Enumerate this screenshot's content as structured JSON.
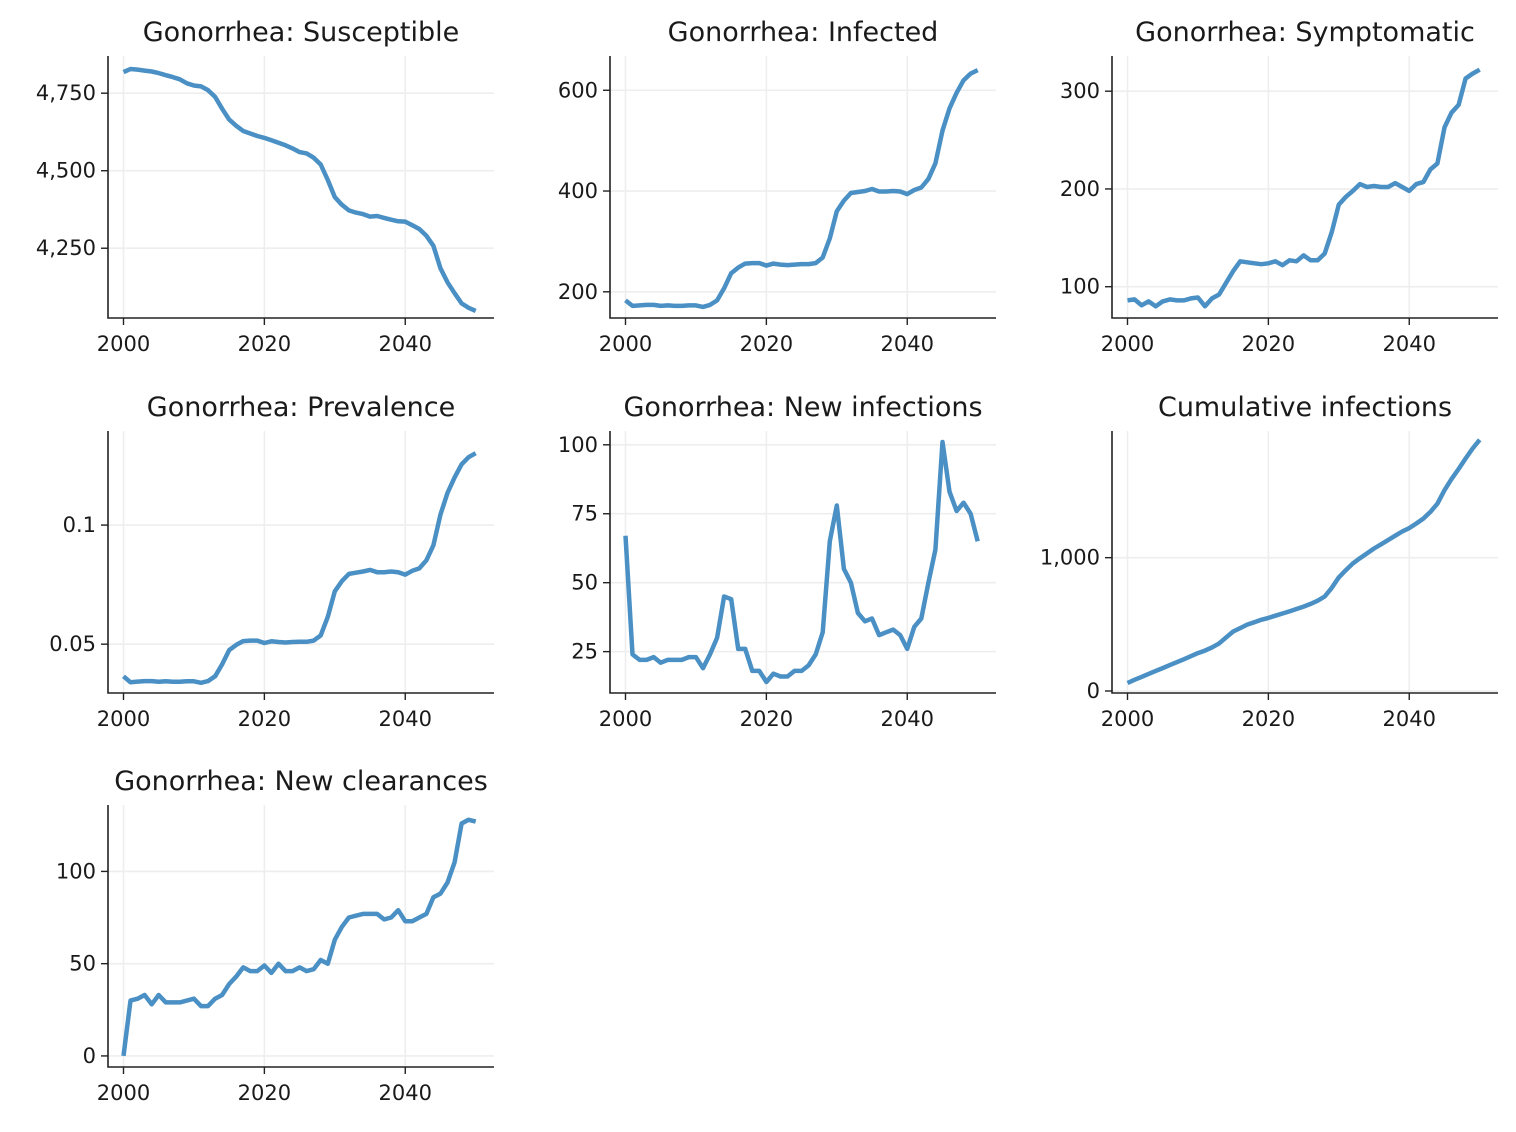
{
  "style": {
    "line_color": "#4a90c4"
  },
  "chart_data": [
    {
      "type": "line",
      "title": "Gonorrhea: Susceptible",
      "xlim": [
        1997.8,
        2052.6
      ],
      "ylim": [
        4025,
        4870
      ],
      "xticks": [
        2000,
        2020,
        2040
      ],
      "xtick_labels": [
        "2000",
        "2020",
        "2040"
      ],
      "yticks": [
        4250,
        4500,
        4750
      ],
      "ytick_labels": [
        "4,250",
        "4,500",
        "4,750"
      ],
      "grid": true,
      "x": [
        2000,
        2001,
        2002,
        2003,
        2004,
        2005,
        2006,
        2007,
        2008,
        2009,
        2010,
        2011,
        2012,
        2013,
        2014,
        2015,
        2016,
        2017,
        2018,
        2019,
        2020,
        2021,
        2022,
        2023,
        2024,
        2025,
        2026,
        2027,
        2028,
        2029,
        2030,
        2031,
        2032,
        2033,
        2034,
        2035,
        2036,
        2037,
        2038,
        2039,
        2040,
        2041,
        2042,
        2043,
        2044,
        2045,
        2046,
        2047,
        2048,
        2049,
        2050
      ],
      "y": [
        4818,
        4828,
        4826,
        4823,
        4820,
        4815,
        4808,
        4802,
        4795,
        4782,
        4775,
        4772,
        4760,
        4738,
        4700,
        4665,
        4645,
        4628,
        4620,
        4612,
        4606,
        4598,
        4590,
        4582,
        4572,
        4560,
        4556,
        4542,
        4520,
        4470,
        4415,
        4390,
        4372,
        4365,
        4360,
        4352,
        4354,
        4348,
        4342,
        4337,
        4336,
        4324,
        4312,
        4290,
        4258,
        4185,
        4140,
        4105,
        4072,
        4058,
        4048
      ]
    },
    {
      "type": "line",
      "title": "Gonorrhea: Infected",
      "xlim": [
        1997.8,
        2052.6
      ],
      "ylim": [
        148,
        668
      ],
      "xticks": [
        2000,
        2020,
        2040
      ],
      "xtick_labels": [
        "2000",
        "2020",
        "2040"
      ],
      "yticks": [
        200,
        400,
        600
      ],
      "ytick_labels": [
        "200",
        "400",
        "600"
      ],
      "grid": true,
      "x": [
        2000,
        2001,
        2002,
        2003,
        2004,
        2005,
        2006,
        2007,
        2008,
        2009,
        2010,
        2011,
        2012,
        2013,
        2014,
        2015,
        2016,
        2017,
        2018,
        2019,
        2020,
        2021,
        2022,
        2023,
        2024,
        2025,
        2026,
        2027,
        2028,
        2029,
        2030,
        2031,
        2032,
        2033,
        2034,
        2035,
        2036,
        2037,
        2038,
        2039,
        2040,
        2041,
        2042,
        2043,
        2044,
        2045,
        2046,
        2047,
        2048,
        2049,
        2050
      ],
      "y": [
        183,
        172,
        173,
        174,
        174,
        172,
        173,
        172,
        172,
        173,
        173,
        170,
        174,
        183,
        207,
        237,
        248,
        256,
        257,
        257,
        252,
        256,
        254,
        253,
        254,
        255,
        255,
        257,
        268,
        306,
        360,
        381,
        396,
        398,
        400,
        404,
        399,
        399,
        400,
        399,
        394,
        402,
        407,
        424,
        455,
        520,
        564,
        595,
        620,
        633,
        640
      ]
    },
    {
      "type": "line",
      "title": "Gonorrhea: Symptomatic",
      "xlim": [
        1997.8,
        2052.6
      ],
      "ylim": [
        68,
        336
      ],
      "xticks": [
        2000,
        2020,
        2040
      ],
      "xtick_labels": [
        "2000",
        "2020",
        "2040"
      ],
      "yticks": [
        100,
        200,
        300
      ],
      "ytick_labels": [
        "100",
        "200",
        "300"
      ],
      "grid": true,
      "x": [
        2000,
        2001,
        2002,
        2003,
        2004,
        2005,
        2006,
        2007,
        2008,
        2009,
        2010,
        2011,
        2012,
        2013,
        2014,
        2015,
        2016,
        2017,
        2018,
        2019,
        2020,
        2021,
        2022,
        2023,
        2024,
        2025,
        2026,
        2027,
        2028,
        2029,
        2030,
        2031,
        2032,
        2033,
        2034,
        2035,
        2036,
        2037,
        2038,
        2039,
        2040,
        2041,
        2042,
        2043,
        2044,
        2045,
        2046,
        2047,
        2048,
        2049,
        2050
      ],
      "y": [
        86,
        87,
        81,
        85,
        80,
        85,
        87,
        86,
        86,
        88,
        89,
        80,
        88,
        92,
        104,
        116,
        126,
        125,
        124,
        123,
        124,
        126,
        122,
        127,
        126,
        132,
        127,
        127,
        134,
        156,
        184,
        192,
        198,
        205,
        202,
        203,
        202,
        202,
        206,
        202,
        198,
        205,
        207,
        220,
        226,
        263,
        278,
        286,
        313,
        318,
        322
      ]
    },
    {
      "type": "line",
      "title": "Gonorrhea: Prevalence",
      "xlim": [
        1997.8,
        2052.6
      ],
      "ylim": [
        0.0295,
        0.1395
      ],
      "xticks": [
        2000,
        2020,
        2040
      ],
      "xtick_labels": [
        "2000",
        "2020",
        "2040"
      ],
      "yticks": [
        0.05,
        0.1
      ],
      "ytick_labels": [
        "0.05",
        "0.1"
      ],
      "grid": true,
      "x": [
        2000,
        2001,
        2002,
        2003,
        2004,
        2005,
        2006,
        2007,
        2008,
        2009,
        2010,
        2011,
        2012,
        2013,
        2014,
        2015,
        2016,
        2017,
        2018,
        2019,
        2020,
        2021,
        2022,
        2023,
        2024,
        2025,
        2026,
        2027,
        2028,
        2029,
        2030,
        2031,
        2032,
        2033,
        2034,
        2035,
        2036,
        2037,
        2038,
        2039,
        2040,
        2041,
        2042,
        2043,
        2044,
        2045,
        2046,
        2047,
        2048,
        2049,
        2050
      ],
      "y": [
        0.0365,
        0.034,
        0.0343,
        0.0345,
        0.0345,
        0.0342,
        0.0344,
        0.0342,
        0.0342,
        0.0344,
        0.0344,
        0.0338,
        0.0345,
        0.0365,
        0.0415,
        0.0475,
        0.0497,
        0.0513,
        0.0515,
        0.0515,
        0.0505,
        0.0512,
        0.0509,
        0.0507,
        0.0509,
        0.051,
        0.051,
        0.0515,
        0.0537,
        0.0615,
        0.0722,
        0.0765,
        0.0795,
        0.08,
        0.0805,
        0.0812,
        0.0802,
        0.0802,
        0.0805,
        0.0802,
        0.0792,
        0.0808,
        0.0818,
        0.0852,
        0.0915,
        0.1045,
        0.1135,
        0.12,
        0.1255,
        0.1285,
        0.1302
      ]
    },
    {
      "type": "line",
      "title": "Gonorrhea: New infections",
      "xlim": [
        1997.8,
        2052.6
      ],
      "ylim": [
        10,
        105
      ],
      "xticks": [
        2000,
        2020,
        2040
      ],
      "xtick_labels": [
        "2000",
        "2020",
        "2040"
      ],
      "yticks": [
        25,
        50,
        75,
        100
      ],
      "ytick_labels": [
        "25",
        "50",
        "75",
        "100"
      ],
      "grid": true,
      "x": [
        2000,
        2001,
        2002,
        2003,
        2004,
        2005,
        2006,
        2007,
        2008,
        2009,
        2010,
        2011,
        2012,
        2013,
        2014,
        2015,
        2016,
        2017,
        2018,
        2019,
        2020,
        2021,
        2022,
        2023,
        2024,
        2025,
        2026,
        2027,
        2028,
        2029,
        2030,
        2031,
        2032,
        2033,
        2034,
        2035,
        2036,
        2037,
        2038,
        2039,
        2040,
        2041,
        2042,
        2043,
        2044,
        2045,
        2046,
        2047,
        2048,
        2049,
        2050
      ],
      "y": [
        67,
        24,
        22,
        22,
        23,
        21,
        22,
        22,
        22,
        23,
        23,
        19,
        24,
        30,
        45,
        44,
        26,
        26,
        18,
        18,
        14,
        17,
        16,
        16,
        18,
        18,
        20,
        24,
        32,
        65,
        78,
        55,
        50,
        39,
        36,
        37,
        31,
        32,
        33,
        31,
        26,
        34,
        37,
        50,
        62,
        101,
        83,
        76,
        79,
        75,
        65
      ]
    },
    {
      "type": "line",
      "title": "Cumulative infections",
      "xlim": [
        1997.8,
        2052.6
      ],
      "ylim": [
        -15,
        1950
      ],
      "xticks": [
        2000,
        2020,
        2040
      ],
      "xtick_labels": [
        "2000",
        "2020",
        "2040"
      ],
      "yticks": [
        0,
        1000
      ],
      "ytick_labels": [
        "0",
        "1,000"
      ],
      "grid": true,
      "x": [
        2000,
        2001,
        2002,
        2003,
        2004,
        2005,
        2006,
        2007,
        2008,
        2009,
        2010,
        2011,
        2012,
        2013,
        2014,
        2015,
        2016,
        2017,
        2018,
        2019,
        2020,
        2021,
        2022,
        2023,
        2024,
        2025,
        2026,
        2027,
        2028,
        2029,
        2030,
        2031,
        2032,
        2033,
        2034,
        2035,
        2036,
        2037,
        2038,
        2039,
        2040,
        2041,
        2042,
        2043,
        2044,
        2045,
        2046,
        2047,
        2048,
        2049,
        2050
      ],
      "y": [
        60,
        84,
        106,
        128,
        151,
        172,
        194,
        216,
        238,
        261,
        284,
        303,
        327,
        357,
        402,
        446,
        472,
        498,
        516,
        534,
        548,
        565,
        581,
        597,
        615,
        633,
        653,
        677,
        709,
        774,
        852,
        907,
        957,
        996,
        1032,
        1069,
        1100,
        1132,
        1165,
        1196,
        1222,
        1256,
        1293,
        1343,
        1405,
        1506,
        1589,
        1665,
        1744,
        1819,
        1884
      ]
    },
    {
      "type": "line",
      "title": "Gonorrhea: New clearances",
      "xlim": [
        1997.8,
        2052.6
      ],
      "ylim": [
        -6,
        136
      ],
      "xticks": [
        2000,
        2020,
        2040
      ],
      "xtick_labels": [
        "2000",
        "2020",
        "2040"
      ],
      "yticks": [
        0,
        50,
        100
      ],
      "ytick_labels": [
        "0",
        "50",
        "100"
      ],
      "grid": true,
      "x": [
        2000,
        2001,
        2002,
        2003,
        2004,
        2005,
        2006,
        2007,
        2008,
        2009,
        2010,
        2011,
        2012,
        2013,
        2014,
        2015,
        2016,
        2017,
        2018,
        2019,
        2020,
        2021,
        2022,
        2023,
        2024,
        2025,
        2026,
        2027,
        2028,
        2029,
        2030,
        2031,
        2032,
        2033,
        2034,
        2035,
        2036,
        2037,
        2038,
        2039,
        2040,
        2041,
        2042,
        2043,
        2044,
        2045,
        2046,
        2047,
        2048,
        2049,
        2050
      ],
      "y": [
        0,
        30,
        31,
        33,
        28,
        33,
        29,
        29,
        29,
        30,
        31,
        27,
        27,
        31,
        33,
        39,
        43,
        48,
        46,
        46,
        49,
        45,
        50,
        46,
        46,
        48,
        46,
        47,
        52,
        50,
        63,
        70,
        75,
        76,
        77,
        77,
        77,
        74,
        75,
        79,
        73,
        73,
        75,
        77,
        86,
        88,
        94,
        105,
        126,
        128,
        127
      ]
    }
  ]
}
